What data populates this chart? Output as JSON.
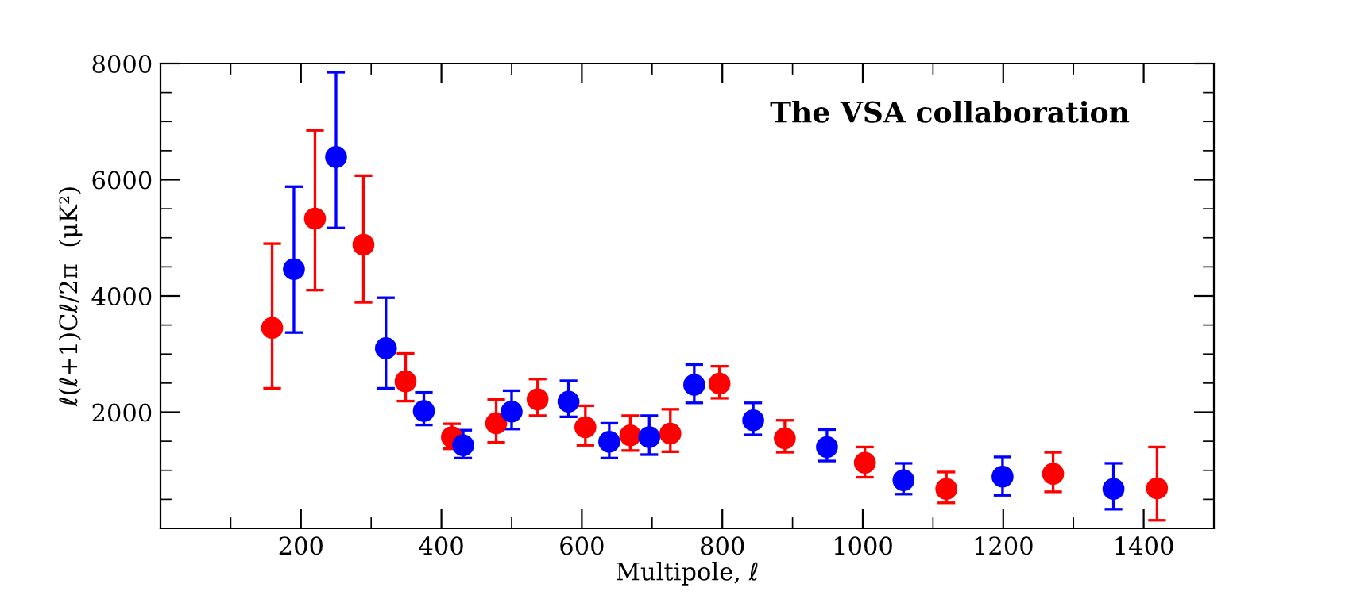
{
  "chart_data": {
    "type": "scatter",
    "xlabel": "Multipole, ℓ",
    "ylabel": "ℓ(ℓ+1)Cℓ/2π  (μK²)",
    "annotations": [
      "The VSA collaboration"
    ],
    "series": [
      {
        "color": "#ff0000",
        "x": [
          159,
          220,
          289,
          349,
          415,
          478,
          537,
          605,
          669,
          726,
          796,
          889,
          1003,
          1119,
          1271,
          1419
        ],
        "values": [
          3450,
          5330,
          4880,
          2530,
          1570,
          1810,
          2220,
          1740,
          1600,
          1630,
          2490,
          1550,
          1130,
          680,
          940,
          690
        ],
        "errors": [
          [
            2410,
            4900
          ],
          [
            4100,
            6850
          ],
          [
            3890,
            6070
          ],
          [
            2190,
            3010
          ],
          [
            1370,
            1800
          ],
          [
            1480,
            2220
          ],
          [
            1940,
            2570
          ],
          [
            1430,
            2110
          ],
          [
            1340,
            1940
          ],
          [
            1320,
            2050
          ],
          [
            2240,
            2790
          ],
          [
            1310,
            1860
          ],
          [
            880,
            1400
          ],
          [
            440,
            970
          ],
          [
            630,
            1310
          ],
          [
            140,
            1400
          ]
        ]
      },
      {
        "color": "#0000ff",
        "x": [
          190,
          250,
          321,
          375,
          431,
          500,
          581,
          639,
          696,
          760,
          844,
          949,
          1058,
          1199,
          1357
        ],
        "values": [
          4460,
          6390,
          3100,
          2020,
          1430,
          2010,
          2180,
          1490,
          1570,
          2470,
          1860,
          1400,
          830,
          890,
          680
        ],
        "errors": [
          [
            3370,
            5880
          ],
          [
            5170,
            7850
          ],
          [
            2410,
            3970
          ],
          [
            1780,
            2340
          ],
          [
            1210,
            1690
          ],
          [
            1710,
            2370
          ],
          [
            1920,
            2540
          ],
          [
            1210,
            1810
          ],
          [
            1270,
            1940
          ],
          [
            2160,
            2820
          ],
          [
            1610,
            2160
          ],
          [
            1160,
            1700
          ],
          [
            590,
            1120
          ],
          [
            570,
            1230
          ],
          [
            330,
            1120
          ]
        ]
      }
    ],
    "marker": "circle",
    "grid": false,
    "legend": false,
    "xlim": [
      0,
      1500
    ],
    "xticks": [
      {
        "value": 100,
        "label": null
      },
      200,
      {
        "value": 300,
        "label": null
      },
      400,
      {
        "value": 500,
        "label": null
      },
      600,
      {
        "value": 700,
        "label": null
      },
      800,
      {
        "value": 900,
        "label": null
      },
      1000,
      {
        "value": 1100,
        "label": null
      },
      1200,
      {
        "value": 1300,
        "label": null
      },
      1400
    ],
    "ylim": [
      0,
      8000
    ],
    "yticks": [
      {
        "value": 500,
        "label": null
      },
      {
        "value": 1000,
        "label": null
      },
      {
        "value": 1500,
        "label": null
      },
      2000,
      {
        "value": 2500,
        "label": null
      },
      {
        "value": 3000,
        "label": null
      },
      {
        "value": 3500,
        "label": null
      },
      4000,
      {
        "value": 4500,
        "label": null
      },
      {
        "value": 5000,
        "label": null
      },
      {
        "value": 5500,
        "label": null
      },
      6000,
      {
        "value": 6500,
        "label": null
      },
      {
        "value": 7000,
        "label": null
      },
      {
        "value": 7500,
        "label": null
      },
      8000
    ]
  }
}
